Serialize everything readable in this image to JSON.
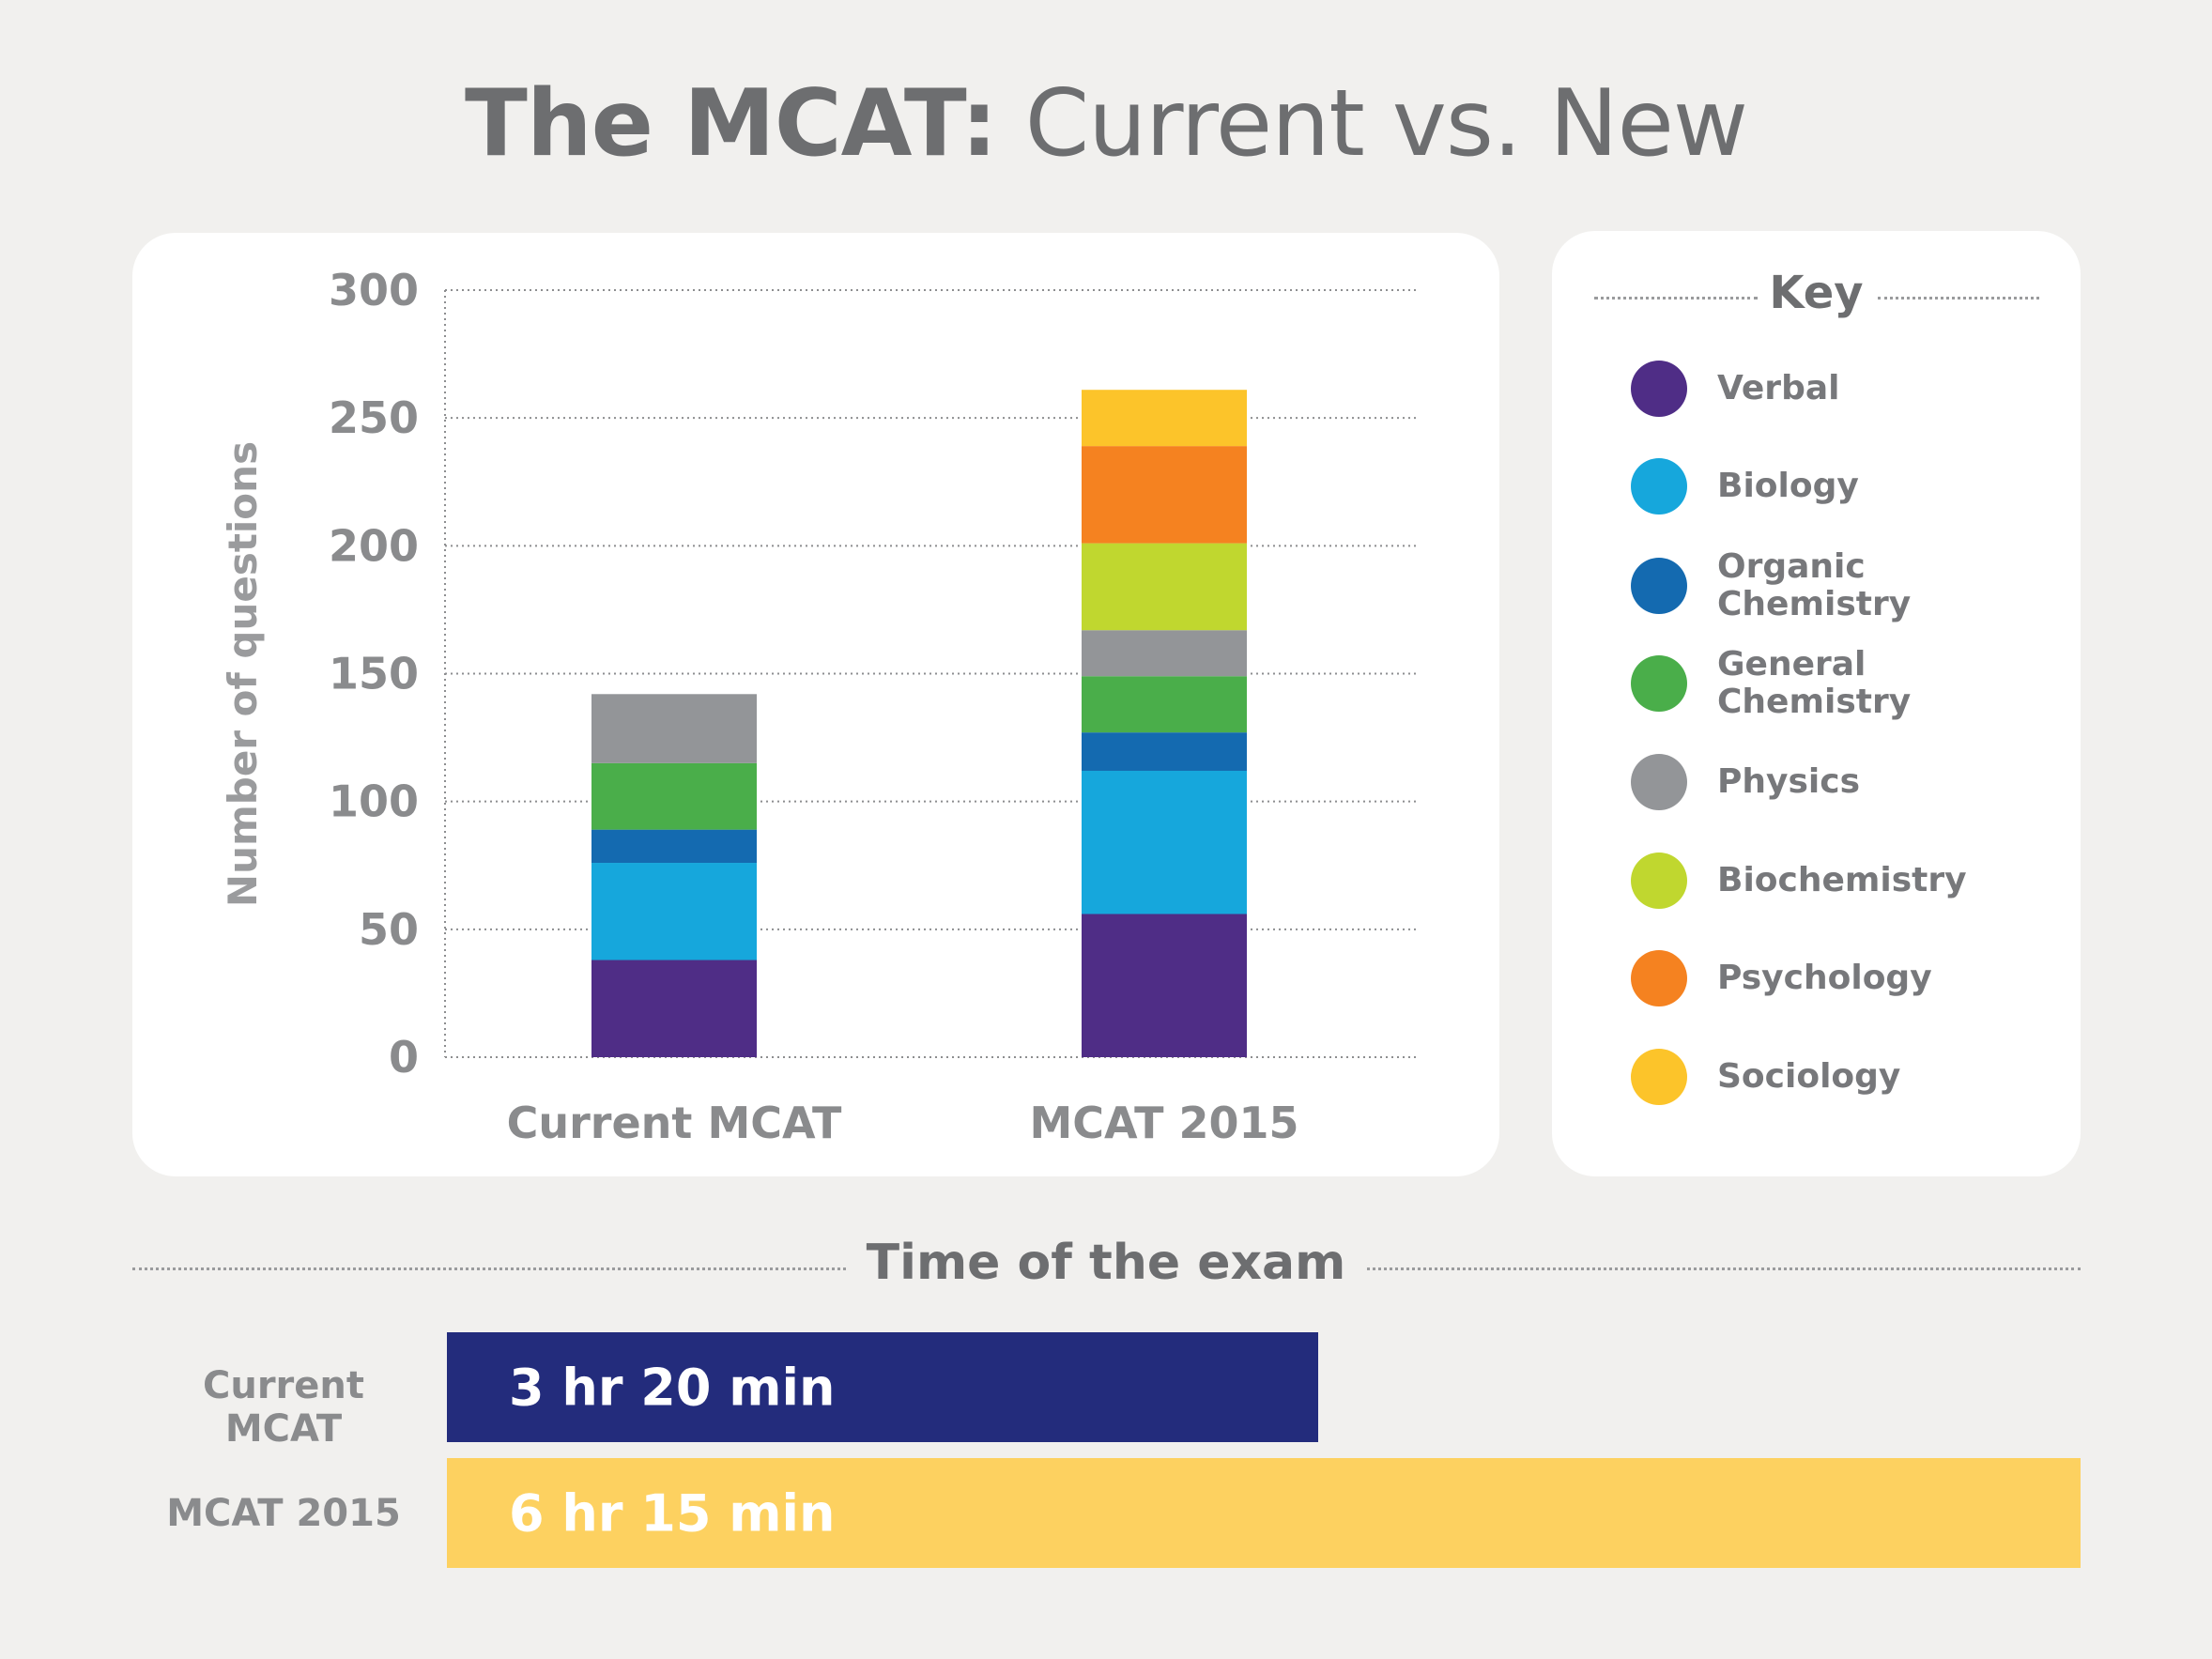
{
  "title": {
    "bold": "The MCAT:",
    "light": "Current vs. New"
  },
  "colors": {
    "Verbal": "#4f2d86",
    "Biology": "#16a7dc",
    "Organic Chemistry": "#146ab0",
    "General Chemistry": "#4aae4a",
    "Physics": "#939598",
    "Biochemistry": "#c0d72f",
    "Psychology": "#f58220",
    "Sociology": "#fcc42a",
    "current_time_bar": "#232c7c",
    "new_time_bar": "#fdd160"
  },
  "chart_data": {
    "type": "bar",
    "stacked": true,
    "title": "The MCAT: Current vs. New",
    "xlabel": "",
    "ylabel": "Number of questions",
    "ylim": [
      0,
      300
    ],
    "yticks": [
      0,
      50,
      100,
      150,
      200,
      250,
      300
    ],
    "grid": true,
    "categories": [
      "Current MCAT",
      "MCAT 2015"
    ],
    "series": [
      {
        "name": "Verbal",
        "values": [
          38,
          56
        ]
      },
      {
        "name": "Biology",
        "values": [
          38,
          56
        ]
      },
      {
        "name": "Organic Chemistry",
        "values": [
          13,
          15
        ]
      },
      {
        "name": "General Chemistry",
        "values": [
          26,
          22
        ]
      },
      {
        "name": "Physics",
        "values": [
          27,
          18
        ]
      },
      {
        "name": "Biochemistry",
        "values": [
          0,
          34
        ]
      },
      {
        "name": "Psychology",
        "values": [
          0,
          38
        ]
      },
      {
        "name": "Sociology",
        "values": [
          0,
          22
        ]
      }
    ]
  },
  "key": {
    "title": "Key",
    "items": [
      {
        "lines": [
          "Verbal"
        ],
        "series": "Verbal"
      },
      {
        "lines": [
          "Biology"
        ],
        "series": "Biology"
      },
      {
        "lines": [
          "Organic",
          "Chemistry"
        ],
        "series": "Organic Chemistry"
      },
      {
        "lines": [
          "General",
          "Chemistry"
        ],
        "series": "General Chemistry"
      },
      {
        "lines": [
          "Physics"
        ],
        "series": "Physics"
      },
      {
        "lines": [
          "Biochemistry"
        ],
        "series": "Biochemistry"
      },
      {
        "lines": [
          "Psychology"
        ],
        "series": "Psychology"
      },
      {
        "lines": [
          "Sociology"
        ],
        "series": "Sociology"
      }
    ]
  },
  "time": {
    "heading": "Time of the exam",
    "max_minutes": 375,
    "rows": [
      {
        "label": "Current MCAT",
        "value": "3 hr 20 min",
        "minutes": 200
      },
      {
        "label": "MCAT 2015",
        "value": "6 hr 15 min",
        "minutes": 375
      }
    ]
  }
}
